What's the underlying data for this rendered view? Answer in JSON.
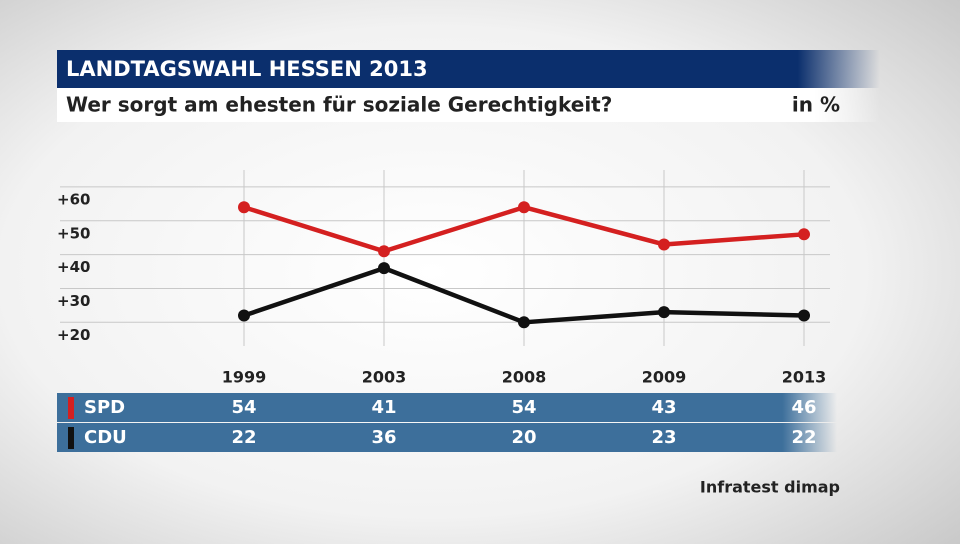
{
  "chart_data": {
    "type": "line",
    "title": "LANDTAGSWAHL HESSEN 2013",
    "subtitle": "Wer sorgt am ehesten für soziale Gerechtigkeit?",
    "unit": "in %",
    "source": "Infratest dimap",
    "categories": [
      "1999",
      "2003",
      "2008",
      "2009",
      "2013"
    ],
    "series": [
      {
        "name": "SPD",
        "color": "#d42020",
        "values": [
          54,
          41,
          54,
          43,
          46
        ]
      },
      {
        "name": "CDU",
        "color": "#111111",
        "values": [
          22,
          36,
          20,
          23,
          22
        ]
      }
    ],
    "ylim": [
      13,
      65
    ],
    "yticks": [
      {
        "value": 20,
        "label": "+20"
      },
      {
        "value": 30,
        "label": "+30"
      },
      {
        "value": 40,
        "label": "+40"
      },
      {
        "value": 50,
        "label": "+50"
      },
      {
        "value": 60,
        "label": "+60"
      }
    ],
    "grid": true
  }
}
